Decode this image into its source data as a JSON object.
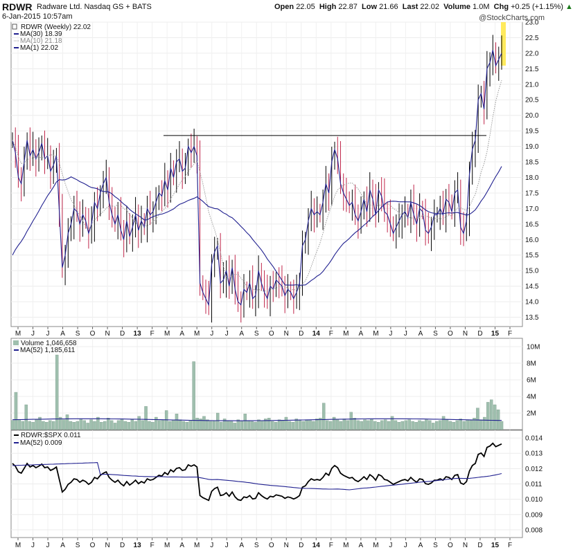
{
  "header": {
    "ticker": "RDWR",
    "company": "Radware Ltd. Nasdaq GS + BATS",
    "datetime": "6-Jan-2015 10:57am",
    "open_label": "Open",
    "open": "22.05",
    "high_label": "High",
    "high": "22.87",
    "low_label": "Low",
    "low": "21.66",
    "last_label": "Last",
    "last": "22.02",
    "volume_label": "Volume",
    "volume": "1.0M",
    "chg_label": "Chg",
    "chg": "+0.25 (+1.15%)",
    "chg_arrow": "▲",
    "brand": "@StockCharts.com"
  },
  "colors": {
    "up": "#000000",
    "down": "#c0254a",
    "ma30": "#1f1f8f",
    "ma10": "#999999",
    "ma1": "#1f1f8f",
    "volume_bar": "#9fbfae",
    "ratio": "#000000",
    "highlight": "#ffe84a"
  },
  "chart_data": [
    {
      "type": "candlestick",
      "title": "RDWR (Weekly) 22.02",
      "legend": [
        {
          "name": "MA(30) 18.39",
          "style": "solid",
          "color": "#1f1f8f"
        },
        {
          "name": "MA(10) 21.18",
          "style": "dotted",
          "color": "#999999"
        },
        {
          "name": "MA(1) 22.02",
          "style": "solid",
          "color": "#1f1f8f"
        }
      ],
      "ylim": [
        13.2,
        23.0
      ],
      "yticks": [
        13.5,
        14.0,
        14.5,
        15.0,
        15.5,
        16.0,
        16.5,
        17.0,
        17.5,
        18.0,
        18.5,
        19.0,
        19.5,
        20.0,
        20.5,
        21.0,
        21.5,
        22.0,
        22.5,
        23.0
      ],
      "close_weekly": [
        19.2,
        18.8,
        18.0,
        17.8,
        18.5,
        19.2,
        18.7,
        18.9,
        18.6,
        18.8,
        19.1,
        18.6,
        18.7,
        18.2,
        18.4,
        18.7,
        16.9,
        15.1,
        15.5,
        16.2,
        16.5,
        17.0,
        16.9,
        16.5,
        16.8,
        16.6,
        16.2,
        16.5,
        17.2,
        17.0,
        17.5,
        17.8,
        18.0,
        17.2,
        16.8,
        16.5,
        16.8,
        16.3,
        16.0,
        16.6,
        16.1,
        16.4,
        16.8,
        16.3,
        16.6,
        16.4,
        17.0,
        16.8,
        16.9,
        17.2,
        17.5,
        17.4,
        17.9,
        17.6,
        18.3,
        18.0,
        18.5,
        18.6,
        18.2,
        18.3,
        19.0,
        18.8,
        19.0,
        18.7,
        14.6,
        14.3,
        14.1,
        13.9,
        15.2,
        15.6,
        15.8,
        14.6,
        14.7,
        15.0,
        14.5,
        15.1,
        14.4,
        14.0,
        13.9,
        14.4,
        14.3,
        14.6,
        14.1,
        14.2,
        15.0,
        14.6,
        14.3,
        14.1,
        14.5,
        14.4,
        14.7,
        14.6,
        14.5,
        14.2,
        14.4,
        14.3,
        14.1,
        14.3,
        14.6,
        15.8,
        16.0,
        16.6,
        17.0,
        16.8,
        16.9,
        16.8,
        17.2,
        17.8,
        17.5,
        18.5,
        18.9,
        18.6,
        17.8,
        17.5,
        17.3,
        17.1,
        17.2,
        16.8,
        16.6,
        16.9,
        17.3,
        16.9,
        17.6,
        17.3,
        16.8,
        17.6,
        17.4,
        16.9,
        16.8,
        16.5,
        16.2,
        16.4,
        16.6,
        16.8,
        16.9,
        16.7,
        17.2,
        16.8,
        16.5,
        17.0,
        16.9,
        16.3,
        16.2,
        16.4,
        16.8,
        16.8,
        17.0,
        16.8,
        17.3,
        17.2,
        16.9,
        17.5,
        17.6,
        16.4,
        16.2,
        16.6,
        18.1,
        18.9,
        19.2,
        20.5,
        20.7,
        20.2,
        21.5,
        21.7,
        22.1,
        21.6,
        21.8,
        22.0
      ],
      "ma30_endpoints": {
        "start": 15.5,
        "end": 18.39
      },
      "resistance_line": 19.35,
      "xticks": [
        "M",
        "J",
        "J",
        "A",
        "S",
        "O",
        "N",
        "D",
        "13",
        "F",
        "M",
        "A",
        "M",
        "J",
        "J",
        "A",
        "S",
        "O",
        "N",
        "D",
        "14",
        "F",
        "M",
        "A",
        "M",
        "J",
        "J",
        "A",
        "S",
        "O",
        "N",
        "D",
        "15",
        "F"
      ]
    },
    {
      "type": "bar",
      "title": "Volume 1,046,658",
      "legend": [
        {
          "name": "MA(52) 1,185,611",
          "color": "#1f1f8f"
        }
      ],
      "ylim": [
        0,
        11
      ],
      "yticks": [
        "2M",
        "4M",
        "6M",
        "8M",
        "10M"
      ],
      "values_millions": [
        1.1,
        4.5,
        1.2,
        1.0,
        3.0,
        1.0,
        0.9,
        1.2,
        1.5,
        1.0,
        0.9,
        1.1,
        1.0,
        9.0,
        1.5,
        1.2,
        1.8,
        1.0,
        0.9,
        1.0,
        1.3,
        1.1,
        0.8,
        1.2,
        1.0,
        1.5,
        0.9,
        1.0,
        1.4,
        1.1,
        0.8,
        1.1,
        1.3,
        1.0,
        0.9,
        1.2,
        1.0,
        1.6,
        1.1,
        2.8,
        1.0,
        0.9,
        1.5,
        1.1,
        1.2,
        2.3,
        1.0,
        1.1,
        1.9,
        1.2,
        1.0,
        0.9,
        1.1,
        8.2,
        1.4,
        1.3,
        1.6,
        1.2,
        1.0,
        1.1,
        2.0,
        0.9,
        1.3,
        1.1,
        1.0,
        0.8,
        1.2,
        1.0,
        1.9,
        1.1,
        1.0,
        0.9,
        1.2,
        1.1,
        1.3,
        1.4,
        1.0,
        0.9,
        1.2,
        1.1,
        1.5,
        1.0,
        0.9,
        1.3,
        1.1,
        1.0,
        1.2,
        1.1,
        1.0,
        1.3,
        1.4,
        3.2,
        1.1,
        1.0,
        1.5,
        1.2,
        1.0,
        1.3,
        1.1,
        2.1,
        1.4,
        1.1,
        1.0,
        1.2,
        1.1,
        1.3,
        1.0,
        0.9,
        1.1,
        1.2,
        1.0,
        1.6,
        1.1,
        0.9,
        1.0,
        1.1,
        1.2,
        1.0,
        0.9,
        1.1,
        1.0,
        1.2,
        1.1,
        0.8,
        1.0,
        1.1,
        1.6,
        1.2,
        1.0,
        0.9,
        1.1,
        1.3,
        1.0,
        1.2,
        1.1,
        1.4,
        2.6,
        1.2,
        1.5,
        3.3,
        3.6,
        3.0,
        2.4,
        1.0
      ],
      "ma52_millions": 1.19
    },
    {
      "type": "line",
      "title": "RDWR:$SPX 0.011",
      "legend": [
        {
          "name": "MA(52) 0.009",
          "color": "#1f1f8f"
        }
      ],
      "ylim": [
        0.0075,
        0.0145
      ],
      "yticks": [
        0.008,
        0.009,
        0.01,
        0.011,
        0.012,
        0.013,
        0.014
      ],
      "ytick_labels": [
        "0.008",
        "0.009",
        "0.010",
        "0.011",
        "0.012",
        "0.013",
        "0.014"
      ]
    }
  ]
}
